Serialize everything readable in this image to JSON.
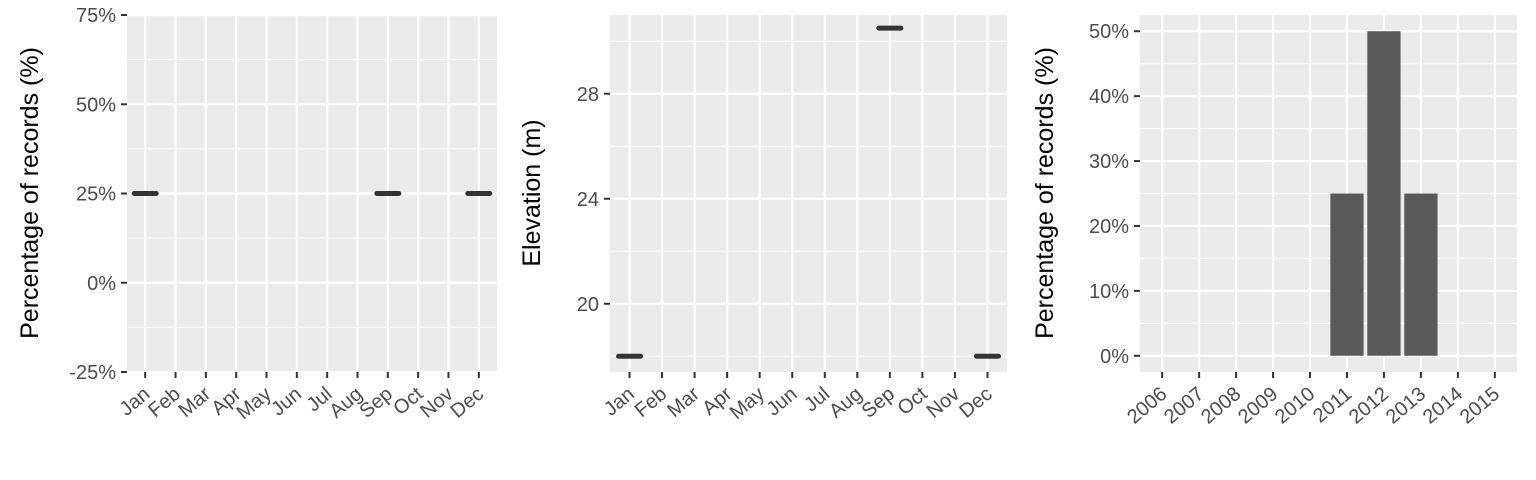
{
  "chart_data": [
    {
      "type": "line",
      "id": "month-percentage",
      "ylabel": "Percentage of records (%)",
      "xlabel": "",
      "categories": [
        "Jan",
        "Feb",
        "Mar",
        "Apr",
        "May",
        "Jun",
        "Jul",
        "Aug",
        "Sep",
        "Oct",
        "Nov",
        "Dec"
      ],
      "y_ticks": [
        -25,
        0,
        25,
        50,
        75
      ],
      "y_tick_labels": [
        "-25%",
        "0%",
        "25%",
        "50%",
        "75%"
      ],
      "ylim": [
        -25,
        75
      ],
      "grid": true,
      "points": [
        {
          "x": "Jan",
          "y": 25
        },
        {
          "x": "Sep",
          "y": 25
        },
        {
          "x": "Dec",
          "y": 25
        }
      ]
    },
    {
      "type": "line",
      "id": "month-elevation",
      "ylabel": "Elevation (m)",
      "xlabel": "",
      "categories": [
        "Jan",
        "Feb",
        "Mar",
        "Apr",
        "May",
        "Jun",
        "Jul",
        "Aug",
        "Sep",
        "Oct",
        "Nov",
        "Dec"
      ],
      "y_ticks": [
        20,
        24,
        28
      ],
      "y_tick_labels": [
        "20",
        "24",
        "28"
      ],
      "ylim": [
        17.4,
        31
      ],
      "grid": true,
      "points": [
        {
          "x": "Jan",
          "y": 18
        },
        {
          "x": "Sep",
          "y": 30.5
        },
        {
          "x": "Dec",
          "y": 18
        }
      ]
    },
    {
      "type": "bar",
      "id": "year-percentage",
      "ylabel": "Percentage of records (%)",
      "xlabel": "",
      "categories": [
        "2006",
        "2007",
        "2008",
        "2009",
        "2010",
        "2011",
        "2012",
        "2013",
        "2014",
        "2015"
      ],
      "values": [
        0,
        0,
        0,
        0,
        0,
        25,
        50,
        25,
        0,
        0
      ],
      "y_ticks": [
        0,
        10,
        20,
        30,
        40,
        50
      ],
      "y_tick_labels": [
        "0%",
        "10%",
        "20%",
        "30%",
        "40%",
        "50%"
      ],
      "ylim": [
        -2.5,
        52.5
      ],
      "grid": true
    }
  ]
}
